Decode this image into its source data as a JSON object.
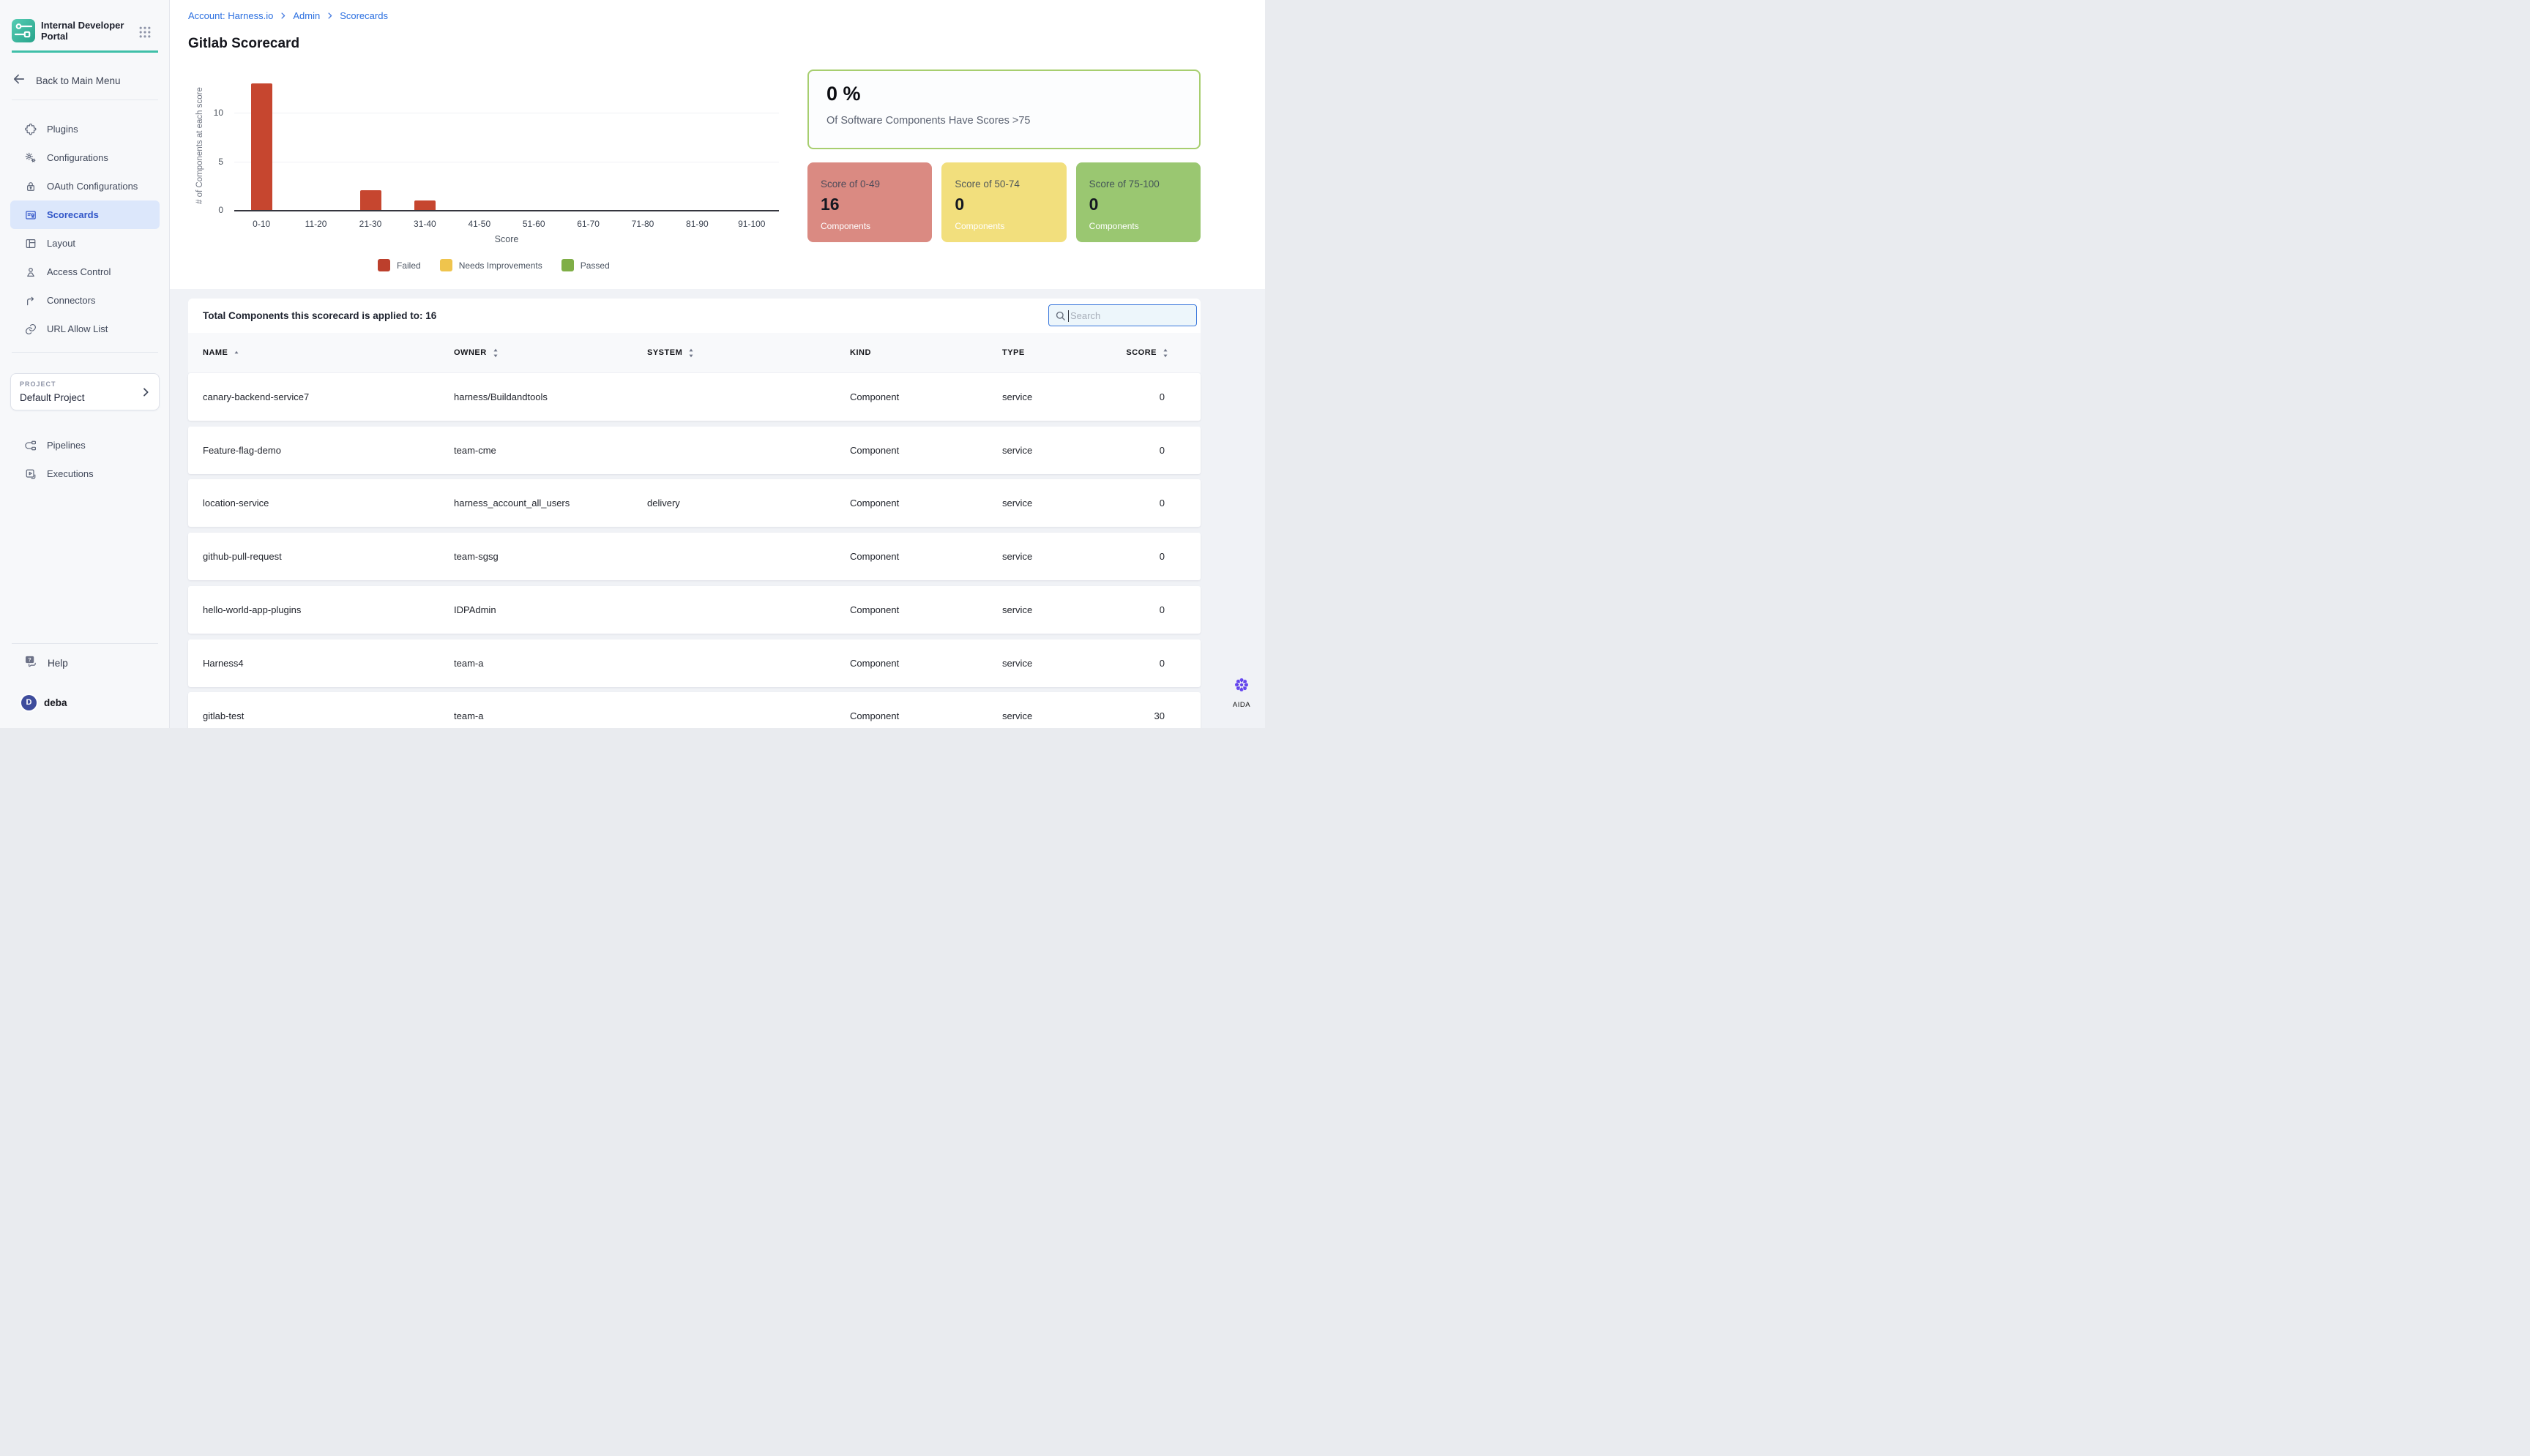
{
  "app": {
    "brand": "Internal Developer Portal"
  },
  "sidebar": {
    "back_label": "Back to Main Menu",
    "nav": [
      {
        "label": "Plugins",
        "icon": "puzzle-icon",
        "active": false
      },
      {
        "label": "Configurations",
        "icon": "gears-icon",
        "active": false
      },
      {
        "label": "OAuth Configurations",
        "icon": "lock-icon",
        "active": false
      },
      {
        "label": "Scorecards",
        "icon": "scorecard-icon",
        "active": true
      },
      {
        "label": "Layout",
        "icon": "layout-icon",
        "active": false
      },
      {
        "label": "Access Control",
        "icon": "person-icon",
        "active": false
      },
      {
        "label": "Connectors",
        "icon": "connector-icon",
        "active": false
      },
      {
        "label": "URL Allow List",
        "icon": "link-icon",
        "active": false
      }
    ],
    "project": {
      "label": "PROJECT",
      "name": "Default Project"
    },
    "project_nav": [
      {
        "label": "Pipelines",
        "icon": "pipeline-icon"
      },
      {
        "label": "Executions",
        "icon": "execution-icon"
      }
    ],
    "help_label": "Help",
    "user": {
      "initial": "D",
      "name": "deba"
    }
  },
  "breadcrumb": [
    "Account: Harness.io",
    "Admin",
    "Scorecards"
  ],
  "page_title": "Gitlab Scorecard",
  "chart_data": {
    "type": "bar",
    "categories": [
      "0-10",
      "11-20",
      "21-30",
      "31-40",
      "41-50",
      "51-60",
      "61-70",
      "71-80",
      "81-90",
      "91-100"
    ],
    "values": [
      13,
      0,
      2,
      1,
      0,
      0,
      0,
      0,
      0,
      0
    ],
    "xlabel": "Score",
    "ylabel": "# of Components at each score",
    "yticks": [
      0,
      5,
      10
    ],
    "ylim": [
      0,
      13.5
    ],
    "grid": true,
    "bar_color": "#C6462F",
    "legend_position": "bottom",
    "legend": [
      {
        "label": "Failed",
        "color": "#BC3F2C"
      },
      {
        "label": "Needs Improvements",
        "color": "#EFC44D"
      },
      {
        "label": "Passed",
        "color": "#7FAE46"
      }
    ]
  },
  "stats": {
    "percent": "0 %",
    "caption": "Of Software Components Have Scores >75",
    "accent": "#A7CE6F",
    "cards": [
      {
        "label": "Score of 0-49",
        "value": "16",
        "sub": "Components",
        "bg": "#DA8A82"
      },
      {
        "label": "Score of 50-74",
        "value": "0",
        "sub": "Components",
        "bg": "#F2DF7D"
      },
      {
        "label": "Score of 75-100",
        "value": "0",
        "sub": "Components",
        "bg": "#9AC771"
      }
    ]
  },
  "table": {
    "summary": "Total Components this scorecard is applied to: 16",
    "search_placeholder": "Search",
    "columns": [
      {
        "label": "NAME",
        "sort": "asc"
      },
      {
        "label": "OWNER",
        "sort": "both"
      },
      {
        "label": "SYSTEM",
        "sort": "both"
      },
      {
        "label": "KIND",
        "sort": "none"
      },
      {
        "label": "TYPE",
        "sort": "none"
      },
      {
        "label": "SCORE",
        "sort": "both"
      }
    ],
    "rows": [
      {
        "name": "canary-backend-service7",
        "owner": "harness/Buildandtools",
        "system": "",
        "kind": "Component",
        "type": "service",
        "score": "0"
      },
      {
        "name": "Feature-flag-demo",
        "owner": "team-cme",
        "system": "",
        "kind": "Component",
        "type": "service",
        "score": "0"
      },
      {
        "name": "location-service",
        "owner": "harness_account_all_users",
        "system": "delivery",
        "kind": "Component",
        "type": "service",
        "score": "0"
      },
      {
        "name": "github-pull-request",
        "owner": "team-sgsg",
        "system": "",
        "kind": "Component",
        "type": "service",
        "score": "0"
      },
      {
        "name": "hello-world-app-plugins",
        "owner": "IDPAdmin",
        "system": "",
        "kind": "Component",
        "type": "service",
        "score": "0"
      },
      {
        "name": "Harness4",
        "owner": "team-a",
        "system": "",
        "kind": "Component",
        "type": "service",
        "score": "0"
      },
      {
        "name": "gitlab-test",
        "owner": "team-a",
        "system": "",
        "kind": "Component",
        "type": "service",
        "score": "30"
      }
    ]
  },
  "assistant": {
    "label": "AIDA"
  }
}
